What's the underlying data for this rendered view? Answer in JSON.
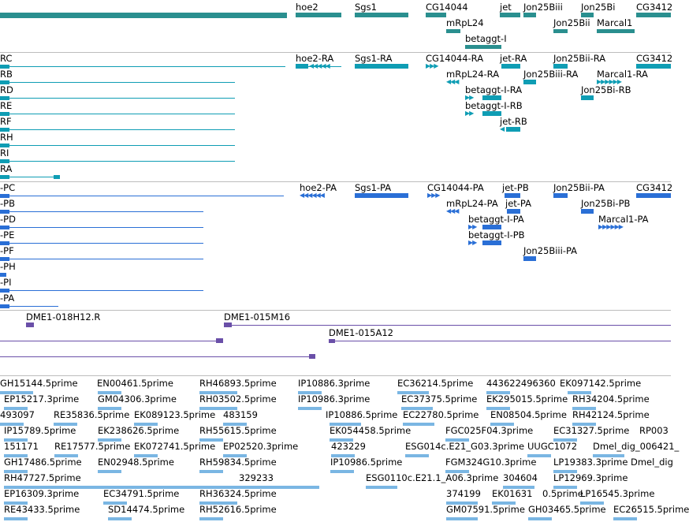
{
  "colors": {
    "gene": "#2a8f8f",
    "transcript": "#0f9db4",
    "protein": "#2a6fd6",
    "clone": "#6a4fa8",
    "est": "#7ab6e3",
    "separator": "#bdbdbd"
  },
  "tracks": {
    "genes": [
      "hoe2",
      "Sgs1",
      "CG14044",
      "jet",
      "Jon25Biii",
      "Jon25Bi",
      "CG3412",
      "mRpL24",
      "Jon25Bii",
      "Marcal1",
      "betaggt-I"
    ],
    "transcripts": [
      "RC",
      "RB",
      "RD",
      "RE",
      "RF",
      "RH",
      "RI",
      "RA",
      "hoe2-RA",
      "Sgs1-RA",
      "CG14044-RA",
      "jet-RA",
      "Jon25Bii-RA",
      "CG3412",
      "mRpL24-RA",
      "Jon25Biii-RA",
      "Marcal1-RA",
      "betaggt-I-RA",
      "Jon25Bi-RB",
      "betaggt-I-RB",
      "jet-RB"
    ],
    "proteins": [
      "-PC",
      "-PB",
      "-PD",
      "-PE",
      "-PF",
      "-PH",
      "-PI",
      "-PA",
      "hoe2-PA",
      "Sgs1-PA",
      "CG14044-PA",
      "jet-PB",
      "Jon25Bii-PA",
      "CG3412",
      "mRpL24-PA",
      "jet-PA",
      "Jon25Bi-PB",
      "betaggt-I-PA",
      "Marcal1-PA",
      "betaggt-I-PB",
      "Jon25Biii-PA"
    ],
    "clones": [
      "DME1-018H12.R",
      "DME1-015M16",
      "DME1-015A12"
    ],
    "ests": [
      "GH15144.5prime",
      "EN00461.5prime",
      "RH46893.5prime",
      "IP10886.3prime",
      "EC36214.5prime",
      "443622496360",
      "EK097142.5prime",
      "EP15217.3prime",
      "GM04306.3prime",
      "RH03502.5prime",
      "IP10986.3prime",
      "EC37375.5prime",
      "EK295015.5prime",
      "RH34204.5prime",
      "493097",
      "RE35836.5prime",
      "EK089123.5prime",
      "483159",
      "IP10886.5prime",
      "EC22780.5prime",
      "EN08504.5prime",
      "RH42124.5prime",
      "IP15789.5prime",
      "EK238626.5prime",
      "RH55615.5prime",
      "EK054458.5prime",
      "FGC025F04.3prime",
      "EC31327.5prime",
      "RP003",
      "151171",
      "RE17577.5prime",
      "EK072741.5prime",
      "EP02520.3prime",
      "423229",
      "ESG014c.E21_G03.3prime",
      "UUGC1072",
      "Dmel_dig_006421_",
      "GH17486.5prime",
      "EN02948.5prime",
      "RH59834.5prime",
      "IP10986.5prime",
      "FGM324G10.3prime",
      "LP19383.3prime",
      "Dmel_dig",
      "RH47727.5prime",
      "329233",
      "ESG0110c.E21.1_A06.3prime",
      "304604",
      "LP12969.3prime",
      "EP16309.3prime",
      "EC34791.5prime",
      "RH36324.5prime",
      "374199",
      "EK01631",
      "0.5prime",
      "LP16545.3prime",
      "RE43433.5prime",
      "SD14474.5prime",
      "RH52616.5prime",
      "GM07591.5prime",
      "GH03465.5prime",
      "EC26515.5prime"
    ]
  }
}
